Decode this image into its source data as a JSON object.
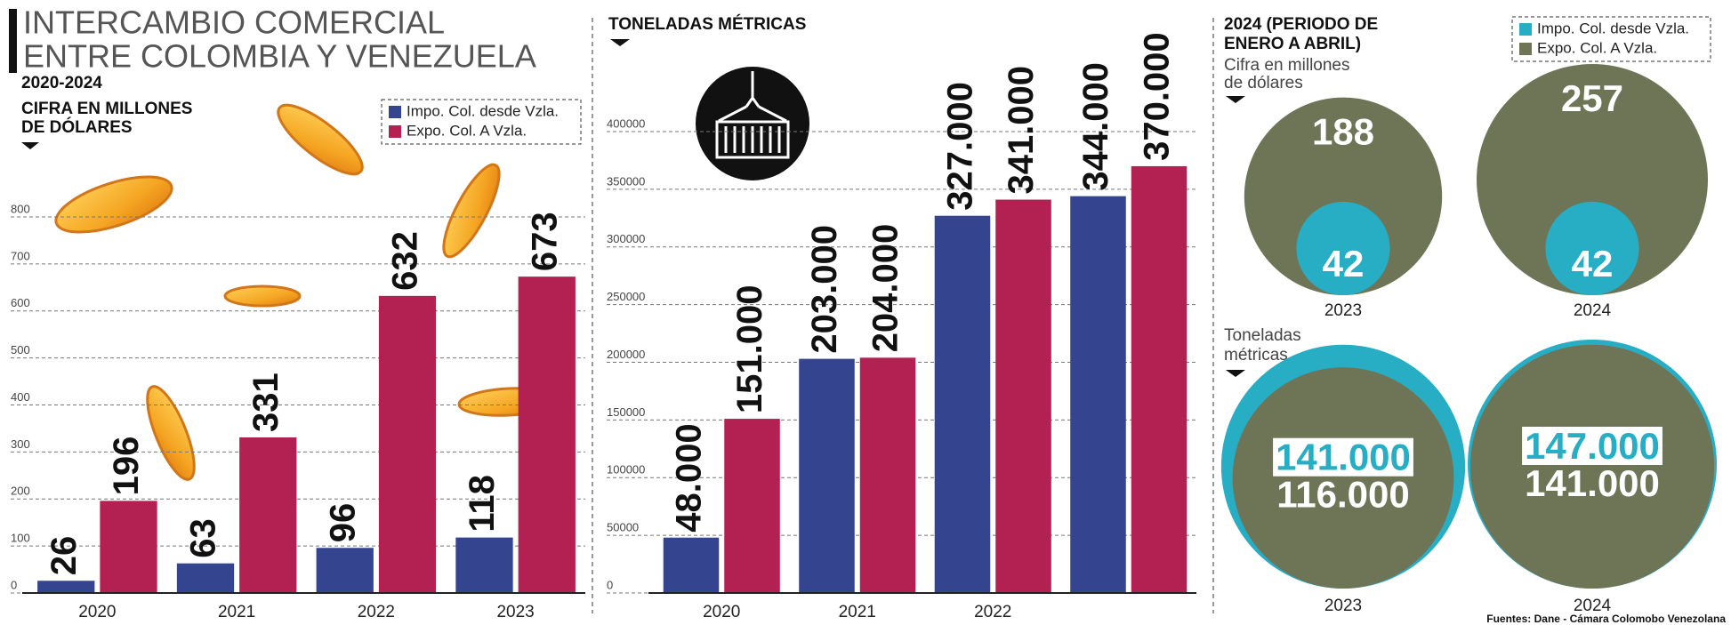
{
  "chart_data": [
    {
      "type": "bar",
      "title": [
        "INTERCAMBIO COMERCIAL",
        "ENTRE COLOMBIA Y VENEZUELA"
      ],
      "subtitle": "2020-2024",
      "y_label": [
        "CIFRA EN MILLONES",
        "DE DÓLARES"
      ],
      "categories": [
        "2020",
        "2021",
        "2022",
        "2023"
      ],
      "series": [
        {
          "name": "Impo. Col. desde Vzla.",
          "color": "#34448e",
          "values": [
            26,
            63,
            96,
            118
          ]
        },
        {
          "name": "Expo. Col. A Vzla.",
          "color": "#b32152",
          "values": [
            196,
            331,
            632,
            673
          ]
        }
      ],
      "ylim": [
        0,
        800
      ],
      "yticks": [
        0,
        100,
        200,
        300,
        400,
        500,
        600,
        700,
        800
      ],
      "grid": true,
      "legend": "top-right"
    },
    {
      "type": "bar",
      "title": "TONELADAS MÉTRICAS",
      "categories": [
        "2020",
        "2021",
        "2022",
        null
      ],
      "series": [
        {
          "color": "#34448e",
          "values": [
            48000,
            203000,
            327000,
            344000
          ],
          "value_labels": [
            "48.000",
            "203.000",
            "327.000",
            "344.000"
          ]
        },
        {
          "color": "#b32152",
          "values": [
            151000,
            204000,
            341000,
            370000
          ],
          "value_labels": [
            "151.000",
            "204.000",
            "341.000",
            "370.000"
          ]
        }
      ],
      "ylim": [
        0,
        400000
      ],
      "yticks": [
        0,
        50000,
        100000,
        150000,
        200000,
        250000,
        300000,
        350000,
        400000
      ],
      "grid": true
    },
    {
      "type": "circle",
      "title": [
        "2024 (PERIODO DE",
        "ENERO A ABRIL)"
      ],
      "subtitle": [
        "Cifra en millones",
        "de dólares"
      ],
      "categories": [
        "2023",
        "2024"
      ],
      "series": [
        {
          "name": "Impo. Col. desde Vzla.",
          "color": "#27adc4",
          "values": [
            42,
            42
          ]
        },
        {
          "name": "Expo. Col. A Vzla.",
          "color": "#6e7557",
          "values": [
            188,
            257
          ]
        }
      ],
      "legend": "top-right"
    },
    {
      "type": "circle",
      "subtitle": [
        "Toneladas",
        "métricas"
      ],
      "categories": [
        "2023",
        "2024"
      ],
      "series": [
        {
          "color": "#27adc4",
          "values": [
            141000,
            147000
          ],
          "value_labels": [
            "141.000",
            "147.000"
          ]
        },
        {
          "color": "#6e7557",
          "values": [
            116000,
            141000
          ],
          "value_labels": [
            "116.000",
            "141.000"
          ]
        }
      ]
    }
  ],
  "source": "Fuentes: Dane - Cámara Colomobo Venezolana"
}
